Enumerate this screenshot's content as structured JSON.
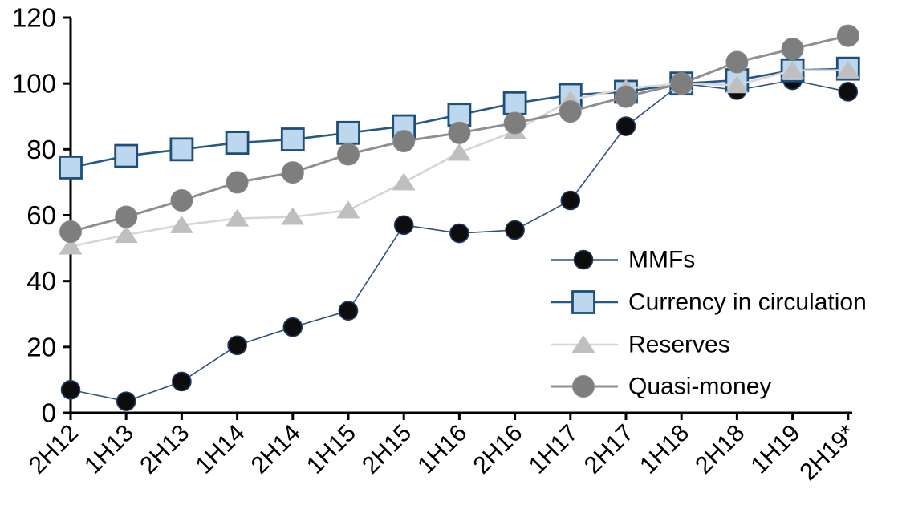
{
  "chart_data": {
    "type": "line",
    "title": "",
    "xlabel": "",
    "ylabel": "",
    "grid": false,
    "legend_position": "inside-right",
    "axis_color": "#000000",
    "text_color": "#000000",
    "background_color": "#ffffff",
    "ylim": [
      0,
      120
    ],
    "ytick_step": 20,
    "yticks": [
      0,
      20,
      40,
      60,
      80,
      100,
      120
    ],
    "categories": [
      "2H12",
      "1H13",
      "2H13",
      "1H14",
      "2H14",
      "1H15",
      "2H15",
      "1H16",
      "2H16",
      "1H17",
      "2H17",
      "1H18",
      "2H18",
      "1H19",
      "2H19*"
    ],
    "series": [
      {
        "key": "mmfs",
        "name": "MMFs",
        "marker": "circle",
        "line_color": "#32517e",
        "marker_fill": "#0d0d0d",
        "marker_stroke": "#1f3864",
        "values": [
          7,
          3.5,
          9.5,
          20.5,
          26,
          31,
          57,
          54.5,
          55.5,
          64.5,
          87,
          100,
          98,
          101,
          97.5
        ]
      },
      {
        "key": "currency",
        "name": "Currency in circulation",
        "marker": "square",
        "line_color": "#24588c",
        "marker_fill": "#bdd7ee",
        "marker_stroke": "#1f4e79",
        "values": [
          74.5,
          78,
          80,
          82,
          83,
          85,
          87,
          90.5,
          94,
          96.5,
          97.5,
          100,
          101,
          104,
          104.5
        ]
      },
      {
        "key": "reserves",
        "name": "Reserves",
        "marker": "triangle",
        "line_color": "#d6d6d6",
        "marker_fill": "#bfbfbf",
        "marker_stroke": "#bfbfbf",
        "values": [
          50.5,
          54,
          57,
          59,
          59.5,
          61.5,
          70,
          79,
          85.5,
          95,
          98.5,
          100,
          99.5,
          104,
          104
        ]
      },
      {
        "key": "quasi",
        "name": "Quasi-money",
        "marker": "circle",
        "line_color": "#8f8f8f",
        "marker_fill": "#7e7e7e",
        "marker_stroke": "#8a8a8a",
        "values": [
          55,
          59.5,
          64.5,
          70,
          73,
          78.5,
          82.5,
          85,
          88,
          91.5,
          96,
          100,
          106.5,
          110.5,
          114.5
        ]
      }
    ]
  }
}
